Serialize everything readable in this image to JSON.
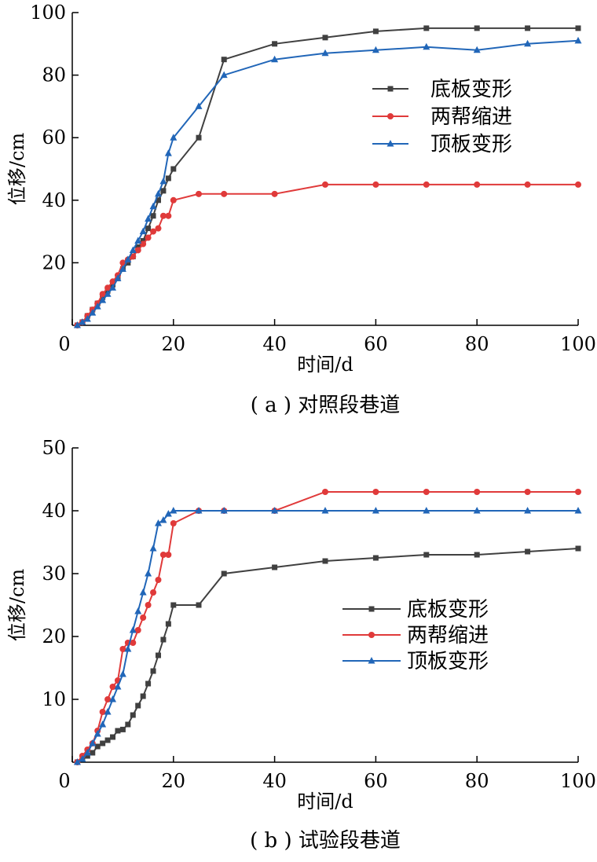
{
  "chart_data": [
    {
      "type": "line",
      "caption": "( a ) 对照段巷道",
      "xlabel": "时间/d",
      "ylabel": "位移/cm",
      "xlim": [
        0,
        100
      ],
      "ylim": [
        0,
        100
      ],
      "xticks": [
        0,
        20,
        40,
        60,
        80,
        100
      ],
      "yticks": [
        20,
        40,
        60,
        80,
        100
      ],
      "x_origin_label": "0",
      "legend_position": "upper-right",
      "series": [
        {
          "name": "底板变形",
          "color": "#404040",
          "marker": "square",
          "x": [
            1,
            2,
            3,
            4,
            5,
            6,
            7,
            8,
            9,
            10,
            11,
            12,
            13,
            14,
            15,
            16,
            17,
            18,
            19,
            20,
            25,
            30,
            40,
            50,
            60,
            70,
            80,
            90,
            100
          ],
          "y": [
            0,
            1,
            3,
            5,
            7,
            9,
            11,
            13,
            15,
            18,
            20,
            22,
            25,
            27,
            31,
            35,
            40,
            43,
            47,
            50,
            60,
            85,
            90,
            92,
            94,
            95,
            95,
            95,
            95
          ]
        },
        {
          "name": "两帮缩进",
          "color": "#e03a3a",
          "marker": "circle",
          "x": [
            1,
            2,
            3,
            4,
            5,
            6,
            7,
            8,
            9,
            10,
            11,
            12,
            13,
            14,
            15,
            16,
            17,
            18,
            19,
            20,
            25,
            30,
            40,
            50,
            60,
            70,
            80,
            90,
            100
          ],
          "y": [
            0,
            1,
            3,
            5,
            7,
            10,
            12,
            14,
            16,
            20,
            21,
            22,
            24,
            26,
            28,
            30,
            31,
            35,
            35,
            40,
            42,
            42,
            42,
            45,
            45,
            45,
            45,
            45,
            45
          ]
        },
        {
          "name": "顶板变形",
          "color": "#2166b8",
          "marker": "triangle",
          "x": [
            1,
            2,
            3,
            4,
            5,
            6,
            7,
            8,
            9,
            10,
            11,
            12,
            13,
            14,
            15,
            16,
            17,
            18,
            19,
            20,
            25,
            30,
            40,
            50,
            60,
            70,
            80,
            90,
            100
          ],
          "y": [
            0,
            1,
            2,
            4,
            6,
            8,
            10,
            12,
            15,
            18,
            21,
            24,
            27,
            30,
            34,
            38,
            42,
            46,
            55,
            60,
            70,
            80,
            85,
            87,
            88,
            89,
            88,
            90,
            91
          ]
        }
      ]
    },
    {
      "type": "line",
      "caption": "( b ) 试验段巷道",
      "xlabel": "时间/d",
      "ylabel": "位移/cm",
      "xlim": [
        0,
        100
      ],
      "ylim": [
        0,
        50
      ],
      "xticks": [
        0,
        20,
        40,
        60,
        80,
        100
      ],
      "yticks": [
        10,
        20,
        30,
        40,
        50
      ],
      "x_origin_label": "0",
      "legend_position": "center-right",
      "series": [
        {
          "name": "底板变形",
          "color": "#404040",
          "marker": "square",
          "x": [
            1,
            2,
            3,
            4,
            5,
            6,
            7,
            8,
            9,
            10,
            11,
            12,
            13,
            14,
            15,
            16,
            17,
            18,
            19,
            20,
            25,
            30,
            40,
            50,
            60,
            70,
            80,
            90,
            100
          ],
          "y": [
            0,
            0.5,
            1,
            1.5,
            2.5,
            3,
            3.5,
            4,
            5,
            5.2,
            6,
            7.5,
            9,
            10.5,
            12.5,
            14.5,
            17,
            19.5,
            22,
            25,
            25,
            30,
            31,
            32,
            32.5,
            33,
            33,
            33.5,
            34
          ]
        },
        {
          "name": "两帮缩进",
          "color": "#e03a3a",
          "marker": "circle",
          "x": [
            1,
            2,
            3,
            4,
            5,
            6,
            7,
            8,
            9,
            10,
            11,
            12,
            13,
            14,
            15,
            16,
            17,
            18,
            19,
            20,
            25,
            30,
            40,
            50,
            60,
            70,
            80,
            90,
            100
          ],
          "y": [
            0,
            1,
            2,
            3,
            5,
            8,
            10,
            12,
            13,
            18,
            19,
            19,
            21,
            23,
            25,
            27,
            29,
            33,
            33,
            38,
            40,
            40,
            40,
            43,
            43,
            43,
            43,
            43,
            43
          ]
        },
        {
          "name": "顶板变形",
          "color": "#2166b8",
          "marker": "triangle",
          "x": [
            1,
            2,
            3,
            4,
            5,
            6,
            7,
            8,
            9,
            10,
            11,
            12,
            13,
            14,
            15,
            16,
            17,
            18,
            19,
            20,
            25,
            30,
            40,
            50,
            60,
            70,
            80,
            90,
            100
          ],
          "y": [
            0,
            0.5,
            1.5,
            3,
            4.5,
            6,
            8,
            10,
            12,
            14,
            18,
            21,
            24,
            27,
            30,
            34,
            38,
            38.5,
            39.5,
            40,
            40,
            40,
            40,
            40,
            40,
            40,
            40,
            40,
            40
          ]
        }
      ]
    }
  ]
}
